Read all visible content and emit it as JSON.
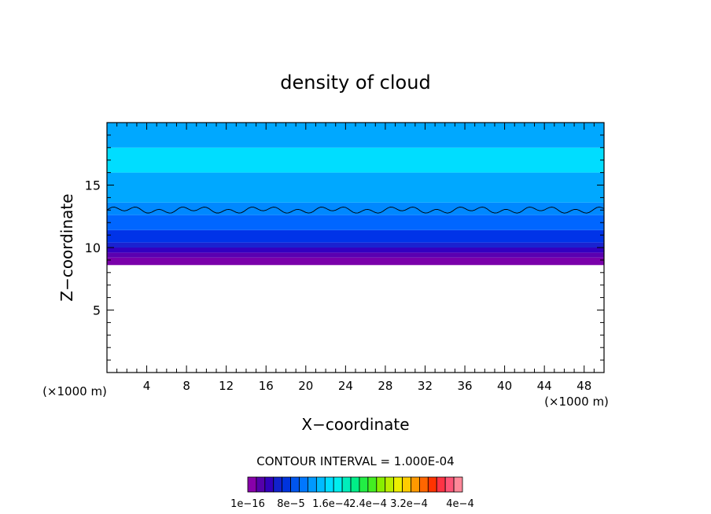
{
  "chart_data": {
    "type": "heatmap",
    "title": "density of cloud",
    "xlabel": "X−coordinate",
    "ylabel": "Z−coordinate",
    "x_unit_left": "(×1000 m)",
    "x_unit_right": "(×1000 m)",
    "xlim": [
      0,
      50
    ],
    "ylim": [
      0,
      20
    ],
    "x_ticks": [
      4,
      8,
      12,
      16,
      20,
      24,
      28,
      32,
      36,
      40,
      44,
      48
    ],
    "y_ticks": [
      5,
      10,
      15
    ],
    "contour_interval": "CONTOUR INTERVAL = 1.000E-04",
    "colorbar_labels": [
      "1e−16",
      "8e−5",
      "1.6e−4",
      "2.4e−4",
      "3.2e−4",
      "4e−4"
    ],
    "colorbar_colors": [
      "#8800aa",
      "#5500aa",
      "#3300bb",
      "#1122cc",
      "#0033dd",
      "#0055ee",
      "#0077ff",
      "#0099ff",
      "#00bbff",
      "#00ddff",
      "#00eeee",
      "#00eebb",
      "#00ee88",
      "#22ee44",
      "#44ee22",
      "#88ee00",
      "#bbee00",
      "#eeee00",
      "#ffcc00",
      "#ff9900",
      "#ff6600",
      "#ff3300",
      "#ff3344",
      "#ff5577",
      "#ff8899"
    ],
    "bands": [
      {
        "z_bottom": 8.6,
        "z_top": 9.2,
        "color": "#7a00aa"
      },
      {
        "z_bottom": 9.2,
        "z_top": 9.6,
        "color": "#5a00b0"
      },
      {
        "z_bottom": 9.6,
        "z_top": 10.0,
        "color": "#3300c0"
      },
      {
        "z_bottom": 10.0,
        "z_top": 10.4,
        "color": "#1a22d0"
      },
      {
        "z_bottom": 10.4,
        "z_top": 11.4,
        "color": "#0033e8"
      },
      {
        "z_bottom": 11.4,
        "z_top": 12.6,
        "color": "#0066ff"
      },
      {
        "z_bottom": 12.6,
        "z_top": 13.6,
        "color": "#0088ff"
      },
      {
        "z_bottom": 13.6,
        "z_top": 16.0,
        "color": "#00a8ff"
      },
      {
        "z_bottom": 16.0,
        "z_top": 18.0,
        "color": "#00ddff"
      },
      {
        "z_bottom": 18.0,
        "z_top": 20.0,
        "color": "#00a8ff"
      }
    ],
    "contour_z": 13.0
  }
}
